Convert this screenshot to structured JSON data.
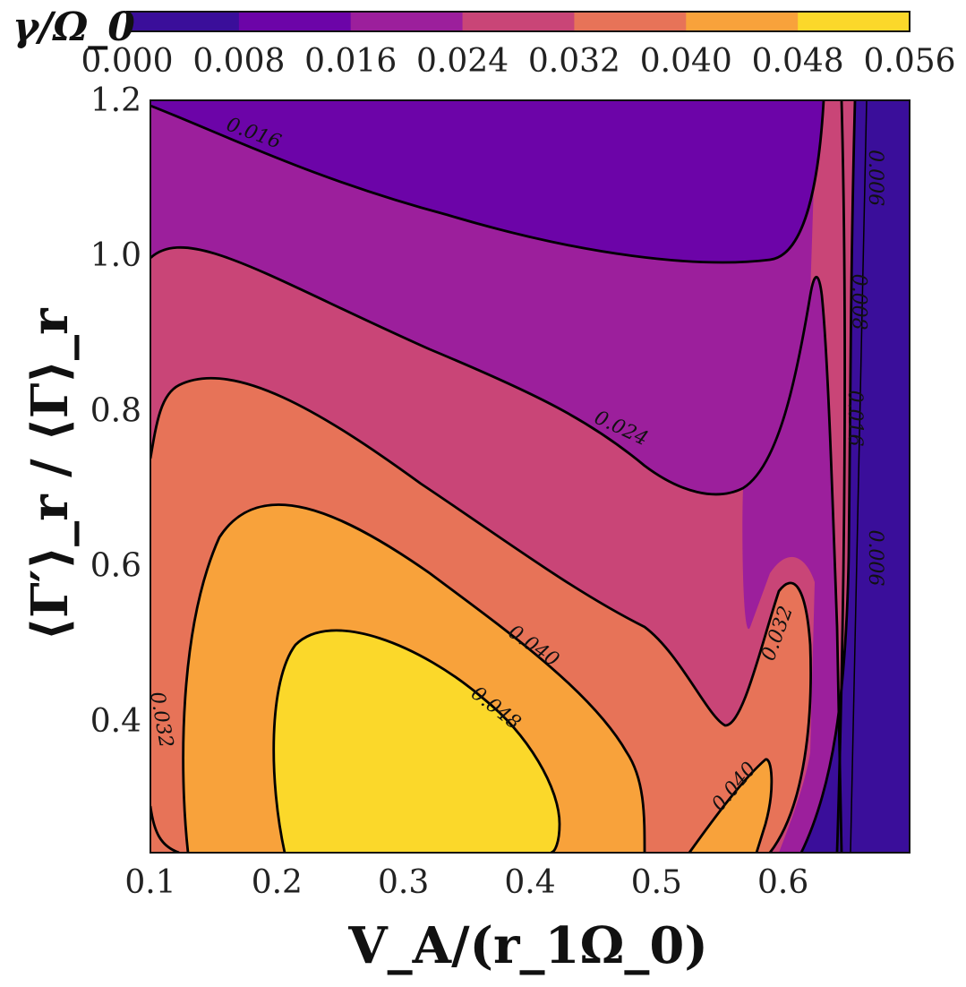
{
  "chart_data": {
    "type": "filled-contour",
    "xlabel": "V_A/(r_1Ω_0)",
    "ylabel": "⟨Γ′⟩_r / ⟨Γ⟩_r",
    "colorbar_label": "γ/Ω_0",
    "xlim": [
      0.1,
      0.7
    ],
    "ylim": [
      0.23,
      1.2
    ],
    "x_ticks": [
      "0.1",
      "0.2",
      "0.3",
      "0.4",
      "0.5",
      "0.6"
    ],
    "y_ticks": [
      "0.4",
      "0.6",
      "0.8",
      "1.0",
      "1.2"
    ],
    "levels": [
      0.0,
      0.008,
      0.016,
      0.024,
      0.032,
      0.04,
      0.048,
      0.056
    ],
    "colorbar_ticks": [
      "0.000",
      "0.008",
      "0.016",
      "0.024",
      "0.032",
      "0.040",
      "0.048",
      "0.056"
    ],
    "colors": [
      "#3a0e9a",
      "#6c04a8",
      "#9c1f9c",
      "#c94577",
      "#e77358",
      "#f8a23b",
      "#fbd82a"
    ],
    "contour_labels": [
      {
        "text": "0.016",
        "x": 0.18,
        "y": 1.15,
        "angle": 20
      },
      {
        "text": "0.024",
        "x": 0.47,
        "y": 0.77,
        "angle": 25
      },
      {
        "text": "0.040",
        "x": 0.4,
        "y": 0.49,
        "angle": 35
      },
      {
        "text": "0.048",
        "x": 0.37,
        "y": 0.41,
        "angle": 38
      },
      {
        "text": "0.032",
        "x": 0.6,
        "y": 0.51,
        "angle": -70
      },
      {
        "text": "0.040",
        "x": 0.565,
        "y": 0.31,
        "angle": -50
      },
      {
        "text": "0.032",
        "x": 0.104,
        "y": 0.4,
        "angle": 80
      },
      {
        "text": "0.006",
        "x": 0.668,
        "y": 1.1,
        "angle": 90
      },
      {
        "text": "0.008",
        "x": 0.655,
        "y": 0.94,
        "angle": 90
      },
      {
        "text": "0.016",
        "x": 0.652,
        "y": 0.79,
        "angle": 90
      },
      {
        "text": "0.006",
        "x": 0.668,
        "y": 0.61,
        "angle": 90
      }
    ],
    "colorbar_placement": "top",
    "grid": false
  }
}
